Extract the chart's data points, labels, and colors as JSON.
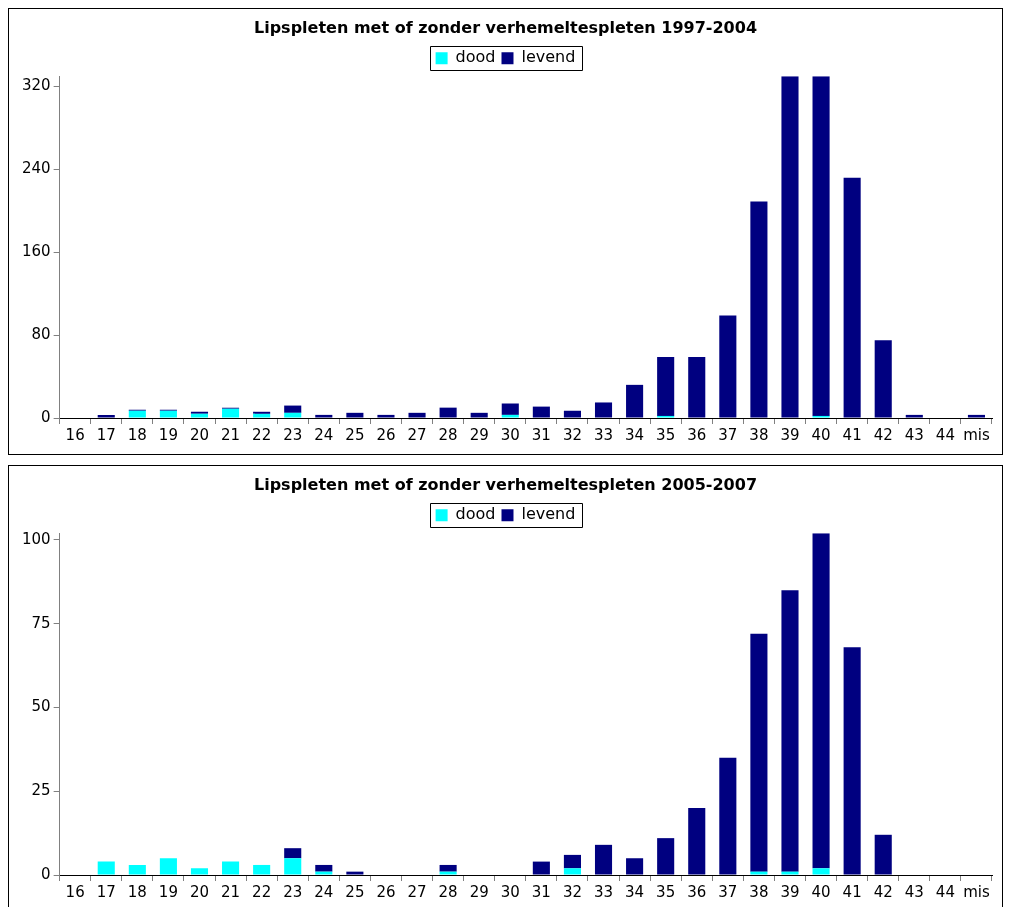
{
  "chart_data": [
    {
      "type": "bar",
      "title": "Lipspleten met of zonder verhemeltespleten 1997-2004",
      "categories": [
        "16",
        "17",
        "18",
        "19",
        "20",
        "21",
        "22",
        "23",
        "24",
        "25",
        "26",
        "27",
        "28",
        "29",
        "30",
        "31",
        "32",
        "33",
        "34",
        "35",
        "36",
        "37",
        "38",
        "39",
        "40",
        "41",
        "42",
        "43",
        "44",
        "mis"
      ],
      "stacked": true,
      "ylim": [
        0,
        330
      ],
      "yticks": [
        0,
        80,
        160,
        240,
        320
      ],
      "grid": false,
      "legend": "top",
      "series": [
        {
          "name": "dood",
          "color": "#00ffff",
          "values": [
            0,
            0,
            7,
            7,
            4,
            9,
            4,
            5,
            0,
            0,
            0,
            0,
            0,
            0,
            3,
            0,
            0,
            0,
            0,
            2,
            0,
            0,
            0,
            0,
            2,
            0,
            0,
            0,
            0,
            0
          ]
        },
        {
          "name": "levend",
          "color": "#000080",
          "values": [
            0,
            3,
            1,
            1,
            2,
            1,
            2,
            7,
            3,
            5,
            3,
            5,
            10,
            5,
            11,
            11,
            7,
            15,
            32,
            57,
            59,
            99,
            209,
            330,
            328,
            232,
            75,
            3,
            0,
            3
          ]
        }
      ]
    },
    {
      "type": "bar",
      "title": "Lipspleten met of zonder verhemeltespleten 2005-2007",
      "categories": [
        "16",
        "17",
        "18",
        "19",
        "20",
        "21",
        "22",
        "23",
        "24",
        "25",
        "26",
        "27",
        "28",
        "29",
        "30",
        "31",
        "32",
        "33",
        "34",
        "35",
        "36",
        "37",
        "38",
        "39",
        "40",
        "41",
        "42",
        "43",
        "44",
        "mis"
      ],
      "stacked": true,
      "ylim": [
        0,
        102
      ],
      "yticks": [
        0,
        25,
        50,
        75,
        100
      ],
      "grid": false,
      "legend": "top",
      "series": [
        {
          "name": "dood",
          "color": "#00ffff",
          "values": [
            0,
            4,
            3,
            5,
            2,
            4,
            3,
            5,
            1,
            0,
            0,
            0,
            1,
            0,
            0,
            0,
            2,
            0,
            0,
            0,
            0,
            0,
            1,
            1,
            2,
            0,
            0,
            0,
            0,
            0
          ]
        },
        {
          "name": "levend",
          "color": "#000080",
          "values": [
            0,
            0,
            0,
            0,
            0,
            0,
            0,
            3,
            2,
            1,
            0,
            0,
            2,
            0,
            0,
            4,
            4,
            9,
            5,
            11,
            20,
            35,
            71,
            84,
            100,
            68,
            12,
            0,
            0,
            0
          ]
        }
      ]
    }
  ]
}
